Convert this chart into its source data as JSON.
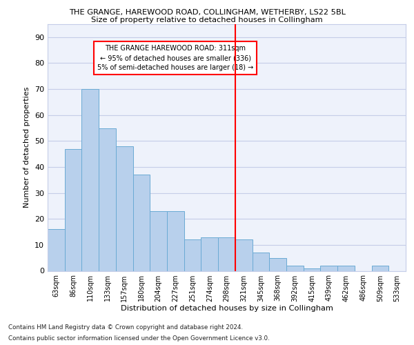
{
  "title": "THE GRANGE, HAREWOOD ROAD, COLLINGHAM, WETHERBY, LS22 5BL",
  "subtitle": "Size of property relative to detached houses in Collingham",
  "xlabel": "Distribution of detached houses by size in Collingham",
  "ylabel": "Number of detached properties",
  "categories": [
    "63sqm",
    "86sqm",
    "110sqm",
    "133sqm",
    "157sqm",
    "180sqm",
    "204sqm",
    "227sqm",
    "251sqm",
    "274sqm",
    "298sqm",
    "321sqm",
    "345sqm",
    "368sqm",
    "392sqm",
    "415sqm",
    "439sqm",
    "462sqm",
    "486sqm",
    "509sqm",
    "533sqm"
  ],
  "values": [
    16,
    47,
    70,
    55,
    48,
    37,
    23,
    23,
    12,
    13,
    13,
    12,
    7,
    5,
    2,
    1,
    2,
    2,
    0,
    2,
    0
  ],
  "bar_color": "#b8d0ec",
  "bar_edgecolor": "#6aaad4",
  "background_color": "#eef2fb",
  "grid_color": "#c5cde8",
  "annotation_line1": "THE GRANGE HAREWOOD ROAD: 311sqm",
  "annotation_line2": "← 95% of detached houses are smaller (336)",
  "annotation_line3": "5% of semi-detached houses are larger (18) →",
  "vline_index": 10.5,
  "ylim": [
    0,
    95
  ],
  "yticks": [
    0,
    10,
    20,
    30,
    40,
    50,
    60,
    70,
    80,
    90
  ],
  "footer_line1": "Contains HM Land Registry data © Crown copyright and database right 2024.",
  "footer_line2": "Contains public sector information licensed under the Open Government Licence v3.0."
}
